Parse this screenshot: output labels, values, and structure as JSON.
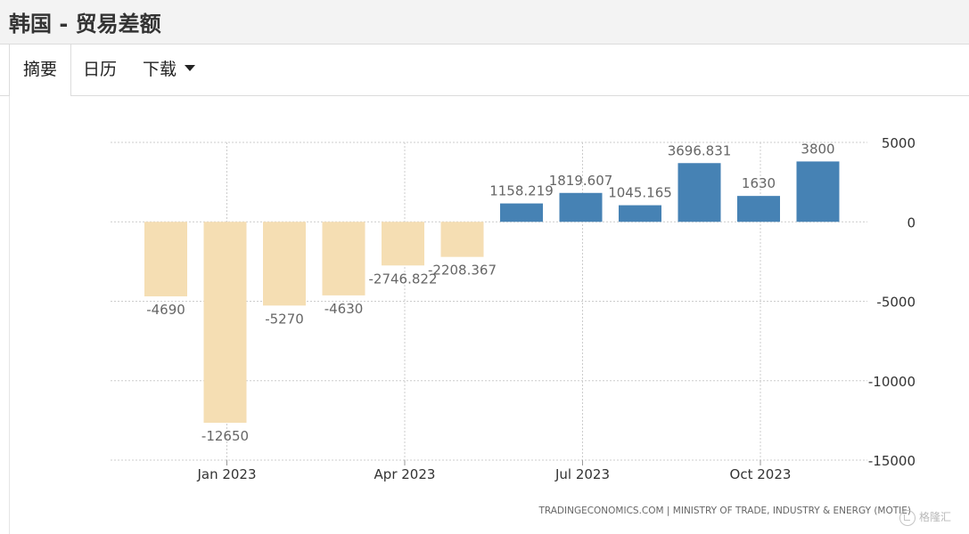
{
  "header": {
    "title": "韩国 - 贸易差额"
  },
  "tabs": [
    {
      "label": "摘要",
      "active": true
    },
    {
      "label": "日历",
      "active": false
    },
    {
      "label": "下载",
      "active": false
    }
  ],
  "source_credit": "TRADINGECONOMICS.COM  |  MINISTRY OF TRADE, INDUSTRY & ENERGY (MOTIE)",
  "watermark": "格隆汇",
  "chart_data": {
    "type": "bar",
    "title": "",
    "xlabel": "",
    "ylabel": "",
    "categories": [
      "2022-12",
      "2023-01",
      "2023-02",
      "2023-03",
      "2023-04",
      "2023-05",
      "2023-06",
      "2023-07",
      "2023-08",
      "2023-09",
      "2023-10",
      "2023-11"
    ],
    "values": [
      -4690,
      -12650,
      -5270,
      -4630,
      -2746.822,
      -2208.367,
      1158.219,
      1819.607,
      1045.165,
      3696.831,
      1630,
      3800
    ],
    "data_labels": [
      "-4690",
      "-12650",
      "-5270",
      "-4630",
      "-2746.822",
      "-2208.367",
      "1158.219",
      "1819.607",
      "1045.165",
      "3696.831",
      "1630",
      "3800"
    ],
    "x_ticks": [
      {
        "label": "Jan 2023",
        "at": "2023-01"
      },
      {
        "label": "Apr 2023",
        "at": "2023-04"
      },
      {
        "label": "Jul 2023",
        "at": "2023-07"
      },
      {
        "label": "Oct 2023",
        "at": "2023-10"
      }
    ],
    "y_ticks": [
      5000,
      0,
      -5000,
      -10000,
      -15000
    ],
    "ylim": [
      -15000,
      5000
    ],
    "y_axis_side": "right",
    "grid": true,
    "colors": {
      "positive": "#4682b4",
      "negative": "#f5deb3",
      "grid": "#cccccc",
      "label": "#666666",
      "axis_text": "#333333"
    }
  }
}
